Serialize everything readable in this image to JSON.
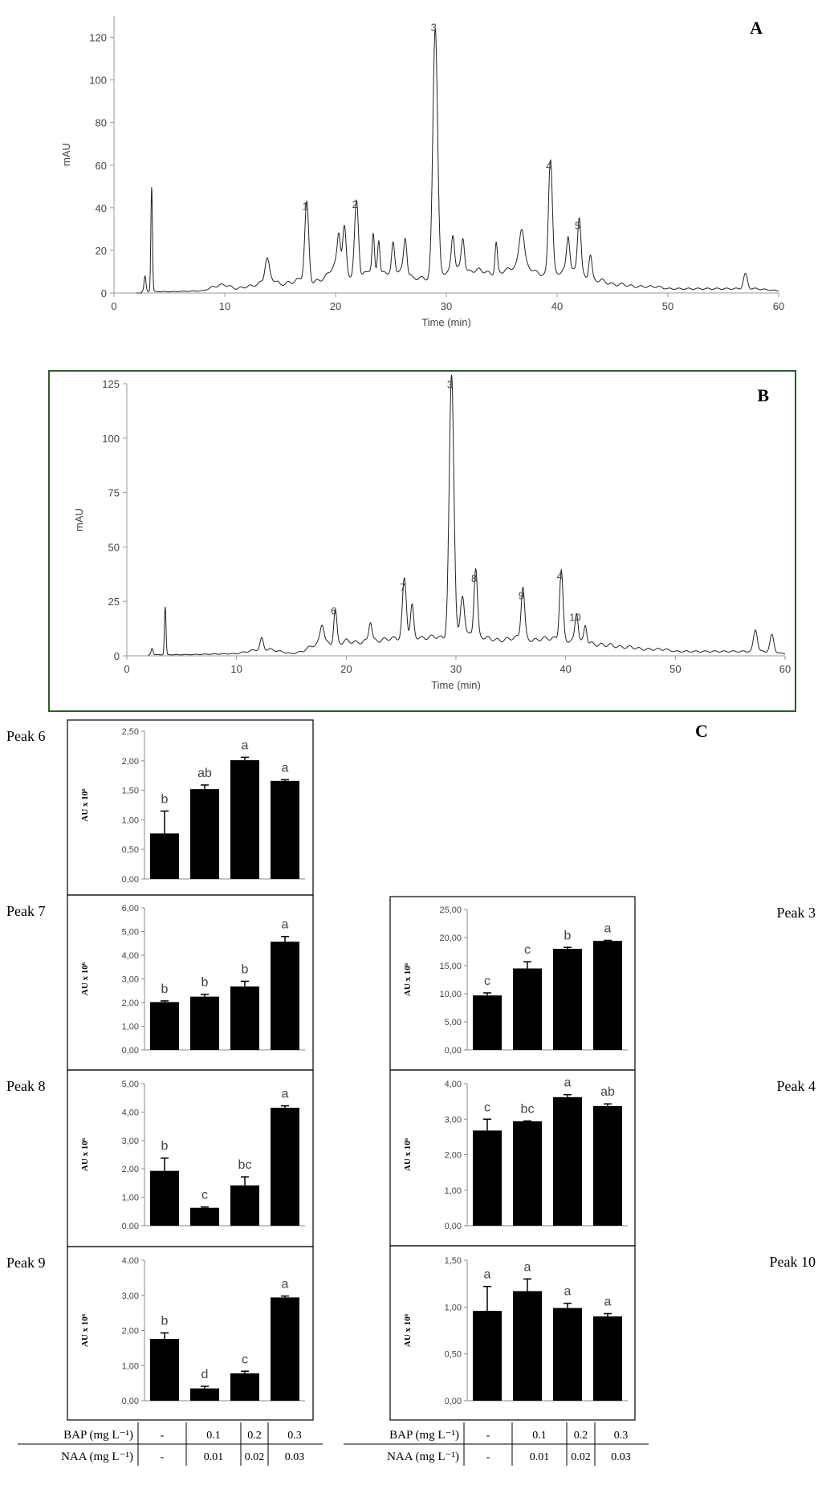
{
  "chart_data": [
    {
      "id": "A",
      "type": "line",
      "panel_label": "A",
      "xlabel": "Time (min)",
      "ylabel": "mAU",
      "xlim": [
        0,
        60
      ],
      "ylim": [
        0,
        130
      ],
      "x_ticks": [
        0,
        10,
        20,
        30,
        40,
        50,
        60
      ],
      "y_ticks": [
        0,
        20,
        40,
        60,
        80,
        100,
        120
      ],
      "baseline": [
        [
          2.5,
          0.8
        ],
        [
          5,
          0.6
        ],
        [
          8,
          1
        ],
        [
          9,
          3
        ],
        [
          10,
          4
        ],
        [
          11,
          2
        ],
        [
          12,
          3
        ],
        [
          13,
          4
        ],
        [
          14,
          8
        ],
        [
          15,
          4
        ],
        [
          16,
          5
        ],
        [
          17,
          7
        ],
        [
          18,
          5
        ],
        [
          19,
          7
        ],
        [
          20,
          14
        ],
        [
          21,
          9
        ],
        [
          22,
          6
        ],
        [
          23,
          11
        ],
        [
          24,
          9
        ],
        [
          25,
          10
        ],
        [
          26,
          11
        ],
        [
          27,
          7
        ],
        [
          28,
          7
        ],
        [
          29,
          6
        ],
        [
          30,
          10
        ],
        [
          31,
          12
        ],
        [
          32,
          10
        ],
        [
          33,
          11
        ],
        [
          34,
          9
        ],
        [
          35,
          10
        ],
        [
          36,
          12
        ],
        [
          37,
          14
        ],
        [
          38,
          10
        ],
        [
          39,
          8
        ],
        [
          40,
          9
        ],
        [
          41,
          12
        ],
        [
          42,
          9
        ],
        [
          43,
          6
        ],
        [
          44,
          6
        ],
        [
          45,
          4
        ],
        [
          46,
          4
        ],
        [
          47,
          3
        ],
        [
          48,
          3
        ],
        [
          49,
          3
        ],
        [
          50,
          2
        ],
        [
          52,
          2
        ],
        [
          54,
          2
        ],
        [
          56,
          2
        ],
        [
          58,
          2
        ],
        [
          60,
          1
        ]
      ],
      "spikes": [
        {
          "x": 2.8,
          "h": 7,
          "w": 0.12
        },
        {
          "x": 3.4,
          "h": 49,
          "w": 0.1
        },
        {
          "x": 13.8,
          "h": 9,
          "w": 0.25
        },
        {
          "x": 17.4,
          "h": 36,
          "w": 0.25
        },
        {
          "x": 20.3,
          "h": 16,
          "w": 0.2
        },
        {
          "x": 20.8,
          "h": 21,
          "w": 0.22
        },
        {
          "x": 21.9,
          "h": 37,
          "w": 0.25
        },
        {
          "x": 23.4,
          "h": 17,
          "w": 0.15
        },
        {
          "x": 23.9,
          "h": 16,
          "w": 0.15
        },
        {
          "x": 25.2,
          "h": 13,
          "w": 0.18
        },
        {
          "x": 26.3,
          "h": 16,
          "w": 0.2
        },
        {
          "x": 29.0,
          "h": 119,
          "w": 0.3
        },
        {
          "x": 30.6,
          "h": 16,
          "w": 0.2
        },
        {
          "x": 31.5,
          "h": 15,
          "w": 0.2
        },
        {
          "x": 34.5,
          "h": 14,
          "w": 0.15
        },
        {
          "x": 36.8,
          "h": 17,
          "w": 0.3
        },
        {
          "x": 39.4,
          "h": 55,
          "w": 0.25
        },
        {
          "x": 41.0,
          "h": 15,
          "w": 0.2
        },
        {
          "x": 42.0,
          "h": 27,
          "w": 0.22
        },
        {
          "x": 43.0,
          "h": 12,
          "w": 0.2
        },
        {
          "x": 57.0,
          "h": 7,
          "w": 0.25
        }
      ],
      "peak_labels": [
        {
          "text": "1",
          "x": 17.4,
          "y": 36
        },
        {
          "text": "2",
          "x": 21.9,
          "y": 37
        },
        {
          "text": "3",
          "x": 29.0,
          "y": 120
        },
        {
          "text": "4",
          "x": 39.4,
          "y": 55
        },
        {
          "text": "5",
          "x": 42.0,
          "y": 27
        }
      ]
    },
    {
      "id": "B",
      "type": "line",
      "panel_label": "B",
      "xlabel": "Time (min)",
      "ylabel": "mAU",
      "xlim": [
        0,
        60
      ],
      "ylim": [
        0,
        125
      ],
      "x_ticks": [
        0,
        10,
        20,
        30,
        40,
        50,
        60
      ],
      "y_ticks": [
        0,
        25,
        50,
        75,
        100,
        125
      ],
      "baseline": [
        [
          2,
          0.5
        ],
        [
          5,
          0.5
        ],
        [
          8,
          0.8
        ],
        [
          10,
          1
        ],
        [
          11,
          2
        ],
        [
          12,
          3
        ],
        [
          13,
          3
        ],
        [
          14,
          2
        ],
        [
          15,
          1
        ],
        [
          16,
          2
        ],
        [
          17,
          5
        ],
        [
          18,
          6
        ],
        [
          19,
          5
        ],
        [
          20,
          7
        ],
        [
          21,
          6
        ],
        [
          22,
          7
        ],
        [
          23,
          7
        ],
        [
          24,
          8
        ],
        [
          25,
          8
        ],
        [
          26,
          9
        ],
        [
          27,
          8
        ],
        [
          28,
          9
        ],
        [
          29,
          8
        ],
        [
          30,
          9
        ],
        [
          31,
          10
        ],
        [
          32,
          9
        ],
        [
          33,
          8
        ],
        [
          34,
          7
        ],
        [
          35,
          8
        ],
        [
          36,
          9
        ],
        [
          37,
          7
        ],
        [
          38,
          8
        ],
        [
          39,
          8
        ],
        [
          40,
          7
        ],
        [
          41,
          7
        ],
        [
          42,
          6
        ],
        [
          43,
          5
        ],
        [
          44,
          5
        ],
        [
          45,
          4
        ],
        [
          46,
          4
        ],
        [
          47,
          3
        ],
        [
          48,
          3
        ],
        [
          49,
          3
        ],
        [
          50,
          2
        ],
        [
          52,
          2
        ],
        [
          54,
          2
        ],
        [
          56,
          2
        ],
        [
          58,
          2
        ],
        [
          60,
          1
        ]
      ],
      "spikes": [
        {
          "x": 2.3,
          "h": 3,
          "w": 0.12
        },
        {
          "x": 3.5,
          "h": 22,
          "w": 0.1
        },
        {
          "x": 12.3,
          "h": 5,
          "w": 0.2
        },
        {
          "x": 17.8,
          "h": 9,
          "w": 0.25
        },
        {
          "x": 19.0,
          "h": 16,
          "w": 0.2
        },
        {
          "x": 22.2,
          "h": 9,
          "w": 0.2
        },
        {
          "x": 25.3,
          "h": 27,
          "w": 0.25
        },
        {
          "x": 26.0,
          "h": 14,
          "w": 0.2
        },
        {
          "x": 29.6,
          "h": 120,
          "w": 0.3
        },
        {
          "x": 30.6,
          "h": 18,
          "w": 0.25
        },
        {
          "x": 31.8,
          "h": 31,
          "w": 0.22
        },
        {
          "x": 36.1,
          "h": 23,
          "w": 0.22
        },
        {
          "x": 39.6,
          "h": 32,
          "w": 0.22
        },
        {
          "x": 41.0,
          "h": 13,
          "w": 0.2
        },
        {
          "x": 41.8,
          "h": 8,
          "w": 0.18
        },
        {
          "x": 57.3,
          "h": 10,
          "w": 0.25
        },
        {
          "x": 58.8,
          "h": 8,
          "w": 0.25
        }
      ],
      "peak_labels": [
        {
          "text": "6",
          "x": 19.0,
          "y": 16
        },
        {
          "text": "7",
          "x": 25.3,
          "y": 27
        },
        {
          "text": "3",
          "x": 29.6,
          "y": 120
        },
        {
          "text": "8",
          "x": 31.8,
          "y": 31
        },
        {
          "text": "9",
          "x": 36.1,
          "y": 23
        },
        {
          "text": "4",
          "x": 39.6,
          "y": 32
        },
        {
          "text": "10",
          "x": 41.0,
          "y": 13
        }
      ]
    },
    {
      "id": "p6",
      "type": "bar",
      "title": "Peak 6",
      "ylabel": "AU x 10⁶",
      "ylim": [
        0,
        2.5
      ],
      "y_ticks": [
        "0,00",
        "0,50",
        "1,00",
        "1,50",
        "2,00",
        "2,50"
      ],
      "values": [
        0.77,
        1.52,
        2.01,
        1.66
      ],
      "errors": [
        0.38,
        0.07,
        0.05,
        0.02
      ],
      "letters": [
        "b",
        "ab",
        "a",
        "a"
      ]
    },
    {
      "id": "p7",
      "type": "bar",
      "title": "Peak 7",
      "ylabel": "AU x 10⁶",
      "ylim": [
        0,
        6
      ],
      "y_ticks": [
        "0,00",
        "1,00",
        "2,00",
        "3,00",
        "4,00",
        "5,00",
        "6,00"
      ],
      "values": [
        2.02,
        2.25,
        2.68,
        4.57
      ],
      "errors": [
        0.05,
        0.1,
        0.22,
        0.22
      ],
      "letters": [
        "b",
        "b",
        "b",
        "a"
      ]
    },
    {
      "id": "p8",
      "type": "bar",
      "title": "Peak 8",
      "ylabel": "AU x 10⁶",
      "ylim": [
        0,
        5
      ],
      "y_ticks": [
        "0,00",
        "1,00",
        "2,00",
        "3,00",
        "4,00",
        "5,00"
      ],
      "values": [
        1.93,
        0.63,
        1.42,
        4.15
      ],
      "errors": [
        0.45,
        0.03,
        0.3,
        0.07
      ],
      "letters": [
        "b",
        "c",
        "bc",
        "a"
      ]
    },
    {
      "id": "p9",
      "type": "bar",
      "title": "Peak 9",
      "ylabel": "AU x 10⁶",
      "ylim": [
        0,
        4
      ],
      "y_ticks": [
        "0,00",
        "1,00",
        "2,00",
        "3,00",
        "4,00"
      ],
      "values": [
        1.76,
        0.35,
        0.78,
        2.94
      ],
      "errors": [
        0.17,
        0.06,
        0.06,
        0.04
      ],
      "letters": [
        "b",
        "d",
        "c",
        "a"
      ]
    },
    {
      "id": "p3",
      "type": "bar",
      "title": "Peak 3",
      "ylabel": "AU x 10⁶",
      "ylim": [
        0,
        25
      ],
      "y_ticks": [
        "0,00",
        "5,00",
        "10,00",
        "15,00",
        "20,00",
        "25,00"
      ],
      "values": [
        9.7,
        14.5,
        18.0,
        19.4
      ],
      "errors": [
        0.45,
        1.2,
        0.25,
        0.1
      ],
      "letters": [
        "c",
        "c",
        "b",
        "a"
      ]
    },
    {
      "id": "p4",
      "type": "bar",
      "title": "Peak 4",
      "ylabel": "AU x 10⁶",
      "ylim": [
        0,
        4
      ],
      "y_ticks": [
        "0,00",
        "1,00",
        "2,00",
        "3,00",
        "4,00"
      ],
      "values": [
        2.68,
        2.94,
        3.62,
        3.37
      ],
      "errors": [
        0.32,
        0.01,
        0.07,
        0.06
      ],
      "letters": [
        "c",
        "bc",
        "a",
        "ab"
      ]
    },
    {
      "id": "p10",
      "type": "bar",
      "title": "Peak 10",
      "ylabel": "AU x 10⁶",
      "ylim": [
        0,
        1.5
      ],
      "y_ticks": [
        "0,00",
        "0,50",
        "1,00",
        "1,50"
      ],
      "values": [
        0.96,
        1.17,
        0.99,
        0.9
      ],
      "errors": [
        0.26,
        0.13,
        0.05,
        0.03
      ],
      "letters": [
        "a",
        "a",
        "a",
        "a"
      ]
    }
  ],
  "panel_c_label": "C",
  "treatment_table": {
    "rows": [
      {
        "label": "BAP (mg L⁻¹)",
        "values": [
          "-",
          "0.1",
          "0.2",
          "0.3"
        ]
      },
      {
        "label": "NAA (mg L⁻¹)",
        "values": [
          "-",
          "0.01",
          "0.02",
          "0.03"
        ]
      }
    ]
  }
}
